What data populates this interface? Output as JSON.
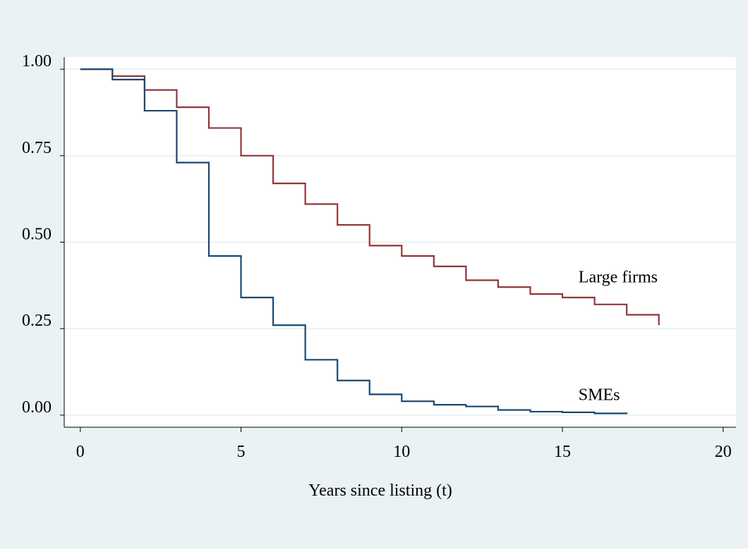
{
  "colors": {
    "background": "#eaf2f3",
    "plot_background": "#ffffff",
    "gridline": "#eaf2f3",
    "axis": "#000000",
    "large_firms": "#90353b",
    "smes": "#1a476f"
  },
  "chart_data": {
    "type": "line",
    "title": "",
    "xlabel": "Years since listing (t)",
    "ylabel": "",
    "xlim": [
      -0.5,
      20.4
    ],
    "ylim": [
      -0.035,
      1.035
    ],
    "x_ticks": [
      0,
      5,
      10,
      15,
      20
    ],
    "x_tick_labels": [
      "0",
      "5",
      "10",
      "15",
      "20"
    ],
    "y_ticks": [
      0,
      0.25,
      0.5,
      0.75,
      1
    ],
    "y_tick_labels": [
      "0.00",
      "0.25",
      "0.50",
      "0.75",
      "1.00"
    ],
    "grid": true,
    "legend": "none",
    "step": true,
    "series": [
      {
        "name": "Large firms",
        "x": [
          0,
          1,
          2,
          3,
          4,
          5,
          6,
          7,
          8,
          9,
          10,
          11,
          12,
          13,
          14,
          15,
          16,
          17,
          18
        ],
        "values": [
          1.0,
          0.98,
          0.94,
          0.89,
          0.83,
          0.75,
          0.67,
          0.61,
          0.55,
          0.49,
          0.46,
          0.43,
          0.39,
          0.37,
          0.35,
          0.34,
          0.32,
          0.29,
          0.26
        ],
        "label_at": [
          15.5,
          0.4
        ]
      },
      {
        "name": "SMEs",
        "x": [
          0,
          1,
          2,
          3,
          4,
          5,
          6,
          7,
          8,
          9,
          10,
          11,
          12,
          13,
          14,
          15,
          16,
          17
        ],
        "values": [
          1.0,
          0.97,
          0.88,
          0.73,
          0.46,
          0.34,
          0.26,
          0.16,
          0.1,
          0.06,
          0.04,
          0.03,
          0.025,
          0.015,
          0.01,
          0.008,
          0.005,
          0.003
        ],
        "label_at": [
          15.5,
          0.06
        ]
      }
    ]
  }
}
